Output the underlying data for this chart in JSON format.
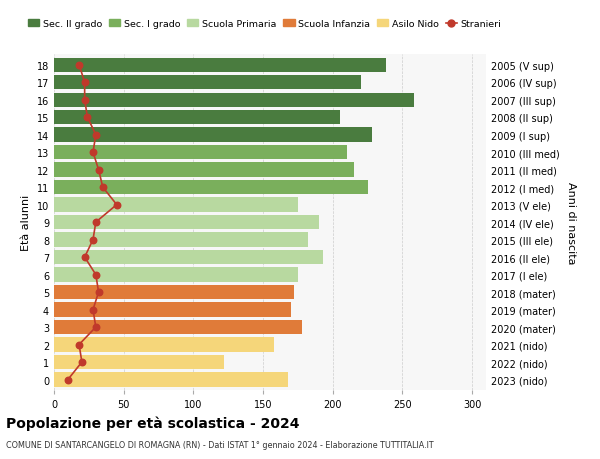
{
  "ages": [
    0,
    1,
    2,
    3,
    4,
    5,
    6,
    7,
    8,
    9,
    10,
    11,
    12,
    13,
    14,
    15,
    16,
    17,
    18
  ],
  "values": [
    168,
    122,
    158,
    178,
    170,
    172,
    175,
    193,
    182,
    190,
    175,
    225,
    215,
    210,
    228,
    205,
    258,
    220,
    238
  ],
  "stranieri": [
    10,
    20,
    18,
    30,
    28,
    32,
    30,
    22,
    28,
    30,
    45,
    35,
    32,
    28,
    30,
    24,
    22,
    22,
    18
  ],
  "right_labels": [
    "2023 (nido)",
    "2022 (nido)",
    "2021 (nido)",
    "2020 (mater)",
    "2019 (mater)",
    "2018 (mater)",
    "2017 (I ele)",
    "2016 (II ele)",
    "2015 (III ele)",
    "2014 (IV ele)",
    "2013 (V ele)",
    "2012 (I med)",
    "2011 (II med)",
    "2010 (III med)",
    "2009 (I sup)",
    "2008 (II sup)",
    "2007 (III sup)",
    "2006 (IV sup)",
    "2005 (V sup)"
  ],
  "bar_colors": [
    "#f5d67a",
    "#f5d67a",
    "#f5d67a",
    "#e07b39",
    "#e07b39",
    "#e07b39",
    "#b8d9a0",
    "#b8d9a0",
    "#b8d9a0",
    "#b8d9a0",
    "#b8d9a0",
    "#7aaf5c",
    "#7aaf5c",
    "#7aaf5c",
    "#4a7c3f",
    "#4a7c3f",
    "#4a7c3f",
    "#4a7c3f",
    "#4a7c3f"
  ],
  "legend_labels": [
    "Sec. II grado",
    "Sec. I grado",
    "Scuola Primaria",
    "Scuola Infanzia",
    "Asilo Nido",
    "Stranieri"
  ],
  "legend_colors": [
    "#4a7c3f",
    "#7aaf5c",
    "#b8d9a0",
    "#e07b39",
    "#f5d67a",
    "#c0392b"
  ],
  "title": "Popolazione per età scolastica - 2024",
  "subtitle": "COMUNE DI SANTARCANGELO DI ROMAGNA (RN) - Dati ISTAT 1° gennaio 2024 - Elaborazione TUTTITALIA.IT",
  "ylabel_left": "Età alunni",
  "ylabel_right": "Anni di nascita",
  "xlim": [
    0,
    310
  ],
  "stranieri_color": "#c0392b",
  "bg_color": "#ffffff",
  "plot_bg": "#f7f7f7"
}
